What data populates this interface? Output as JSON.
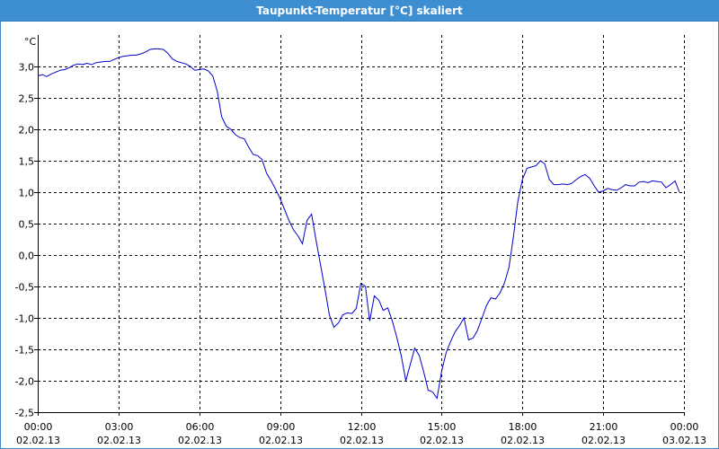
{
  "window": {
    "title": "Taupunkt-Temperatur [°C] skaliert"
  },
  "chart_data": {
    "type": "line",
    "title": "Taupunkt-Temperatur [°C] skaliert",
    "ylabel": "°C",
    "xlabel": "",
    "ylim": [
      -2.5,
      3.5
    ],
    "xlim": [
      0,
      24
    ],
    "grid": true,
    "y_ticks": [
      "3,0",
      "2,5",
      "2,0",
      "1,5",
      "1,0",
      "0,5",
      "0,0",
      "-0,5",
      "-1,0",
      "-1,5",
      "-2,0",
      "-2,5"
    ],
    "y_tick_values": [
      3.0,
      2.5,
      2.0,
      1.5,
      1.0,
      0.5,
      0.0,
      -0.5,
      -1.0,
      -1.5,
      -2.0,
      -2.5
    ],
    "x_ticks": [
      {
        "time": "00:00",
        "date": "02.02.13"
      },
      {
        "time": "03:00",
        "date": "02.02.13"
      },
      {
        "time": "06:00",
        "date": "02.02.13"
      },
      {
        "time": "09:00",
        "date": "02.02.13"
      },
      {
        "time": "12:00",
        "date": "02.02.13"
      },
      {
        "time": "15:00",
        "date": "02.02.13"
      },
      {
        "time": "18:00",
        "date": "02.02.13"
      },
      {
        "time": "21:00",
        "date": "02.02.13"
      },
      {
        "time": "00:00",
        "date": "03.02.13"
      }
    ],
    "x_tick_values": [
      0,
      3,
      6,
      9,
      12,
      15,
      18,
      21,
      24
    ],
    "colors": {
      "line": "#0000cc",
      "grid": "#000000",
      "axis": "#000000"
    },
    "series": [
      {
        "x": [
          0.0,
          0.17,
          0.33,
          0.5,
          0.67,
          0.83,
          1.0,
          1.17,
          1.33,
          1.5,
          1.67,
          1.83,
          2.0,
          2.17,
          2.33,
          2.5,
          2.67,
          2.83,
          3.0,
          3.17,
          3.33,
          3.5,
          3.67,
          3.83,
          4.0,
          4.17,
          4.33,
          4.5,
          4.67,
          4.83,
          5.0,
          5.17,
          5.33,
          5.5,
          5.67,
          5.83,
          6.0,
          6.17,
          6.33,
          6.5,
          6.67,
          6.83,
          7.0,
          7.17,
          7.33,
          7.5,
          7.67,
          7.83,
          8.0,
          8.17,
          8.33,
          8.5,
          8.67,
          8.83,
          9.0,
          9.17,
          9.33,
          9.5,
          9.67,
          9.83,
          10.0,
          10.17,
          10.33,
          10.5,
          10.67,
          10.83,
          11.0,
          11.17,
          11.33,
          11.5,
          11.67,
          11.83,
          12.0,
          12.17,
          12.33,
          12.5,
          12.67,
          12.83,
          13.0,
          13.17,
          13.33,
          13.5,
          13.67,
          13.83,
          14.0,
          14.17,
          14.33,
          14.5,
          14.67,
          14.83,
          15.0,
          15.17,
          15.33,
          15.5,
          15.67,
          15.83,
          16.0,
          16.17,
          16.33,
          16.5,
          16.67,
          16.83,
          17.0,
          17.17,
          17.33,
          17.5,
          17.67,
          17.83,
          18.0,
          18.17,
          18.33,
          18.5,
          18.67,
          18.83,
          19.0,
          19.17,
          19.33,
          19.5,
          19.67,
          19.83,
          20.0,
          20.17,
          20.33,
          20.5,
          20.67,
          20.83,
          21.0,
          21.17,
          21.33,
          21.5,
          21.67,
          21.83,
          22.0,
          22.17,
          22.33,
          22.5,
          22.67,
          22.83,
          23.0,
          23.17,
          23.33,
          23.5,
          23.67,
          23.83
        ],
        "values": [
          2.85,
          2.87,
          2.84,
          2.88,
          2.91,
          2.94,
          2.95,
          2.98,
          3.02,
          3.04,
          3.03,
          3.05,
          3.03,
          3.06,
          3.07,
          3.08,
          3.08,
          3.11,
          3.14,
          3.16,
          3.17,
          3.18,
          3.18,
          3.2,
          3.23,
          3.27,
          3.28,
          3.28,
          3.27,
          3.21,
          3.12,
          3.08,
          3.06,
          3.04,
          3.0,
          2.94,
          2.95,
          2.96,
          2.93,
          2.85,
          2.6,
          2.2,
          2.05,
          2.0,
          1.92,
          1.87,
          1.85,
          1.72,
          1.6,
          1.58,
          1.52,
          1.3,
          1.18,
          1.05,
          0.9,
          0.72,
          0.55,
          0.4,
          0.3,
          0.18,
          0.55,
          0.65,
          0.25,
          -0.15,
          -0.55,
          -0.95,
          -1.15,
          -1.08,
          -0.95,
          -0.92,
          -0.93,
          -0.85,
          -0.45,
          -0.5,
          -1.05,
          -0.65,
          -0.72,
          -0.88,
          -0.84,
          -1.05,
          -1.3,
          -1.6,
          -2.0,
          -1.75,
          -1.48,
          -1.6,
          -1.85,
          -2.15,
          -2.18,
          -2.28,
          -1.85,
          -1.55,
          -1.38,
          -1.22,
          -1.12,
          -1.0,
          -1.35,
          -1.32,
          -1.2,
          -1.0,
          -0.8,
          -0.68,
          -0.7,
          -0.6,
          -0.45,
          -0.2,
          0.3,
          0.85,
          1.2,
          1.38,
          1.4,
          1.42,
          1.5,
          1.45,
          1.2,
          1.12,
          1.12,
          1.13,
          1.12,
          1.14,
          1.2,
          1.25,
          1.28,
          1.22,
          1.1,
          1.0,
          1.02,
          1.06,
          1.04,
          1.03,
          1.07,
          1.12,
          1.1,
          1.1,
          1.16,
          1.17,
          1.15,
          1.18,
          1.17,
          1.16,
          1.07,
          1.12,
          1.18,
          1.0
        ]
      }
    ]
  }
}
